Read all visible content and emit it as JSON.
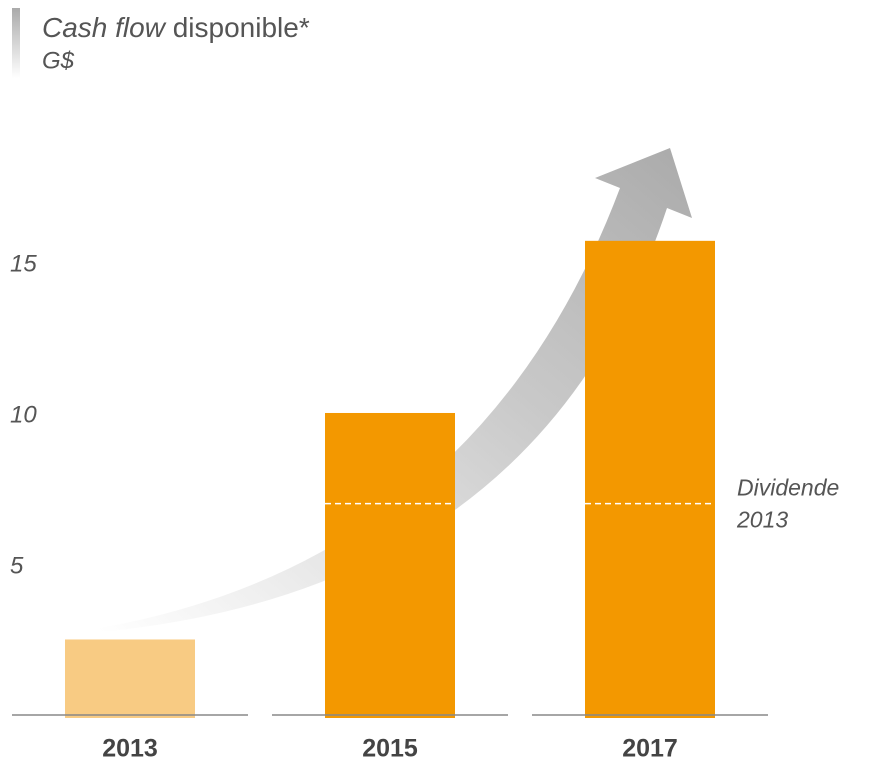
{
  "chart_data": {
    "type": "bar",
    "title_emphasis": "Cash flow",
    "title": "disponible*",
    "subtitle": "G$",
    "categories": [
      "2013",
      "2015",
      "2017"
    ],
    "values": [
      2.6,
      10.1,
      15.8
    ],
    "colors": [
      "#f8cb83",
      "#f39800",
      "#f39800"
    ],
    "ylim": [
      0,
      18
    ],
    "yticks": [
      5,
      10,
      15
    ],
    "annotation": {
      "text": [
        "Dividende",
        "2013"
      ],
      "value": 7.1
    }
  }
}
